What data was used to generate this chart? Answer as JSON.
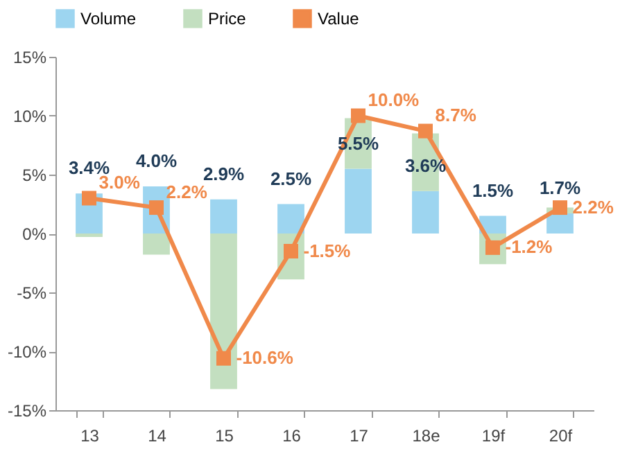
{
  "chart_data": {
    "type": "bar",
    "stacked": true,
    "categories": [
      "13",
      "14",
      "15",
      "16",
      "17",
      "18e",
      "19f",
      "20f"
    ],
    "series": [
      {
        "name": "Volume",
        "color": "#9dd5f0",
        "values": [
          3.4,
          4.0,
          2.9,
          2.5,
          5.5,
          3.6,
          1.5,
          1.7
        ],
        "value_labels": [
          "3.4%",
          "4.0%",
          "2.9%",
          "2.5%",
          "5.5%",
          "3.6%",
          "1.5%",
          "1.7%"
        ]
      },
      {
        "name": "Price",
        "color": "#c3dfc0",
        "values": [
          -0.3,
          -1.8,
          -13.2,
          -3.9,
          4.3,
          4.9,
          -2.6,
          0.5
        ]
      },
      {
        "name": "Value",
        "type": "line",
        "color": "#f0894a",
        "marker": "square",
        "values": [
          3.0,
          2.2,
          -10.6,
          -1.5,
          10.0,
          8.7,
          -1.2,
          2.2
        ],
        "value_labels": [
          "3.0%",
          "2.2%",
          "-10.6%",
          "-1.5%",
          "10.0%",
          "8.7%",
          "-1.2%",
          "2.2%"
        ]
      }
    ],
    "ylim": [
      -15,
      15
    ],
    "yticks": [
      {
        "value": -15,
        "label": "-15%"
      },
      {
        "value": -10,
        "label": "-10%"
      },
      {
        "value": -5,
        "label": "-5%"
      },
      {
        "value": 0,
        "label": "0%"
      },
      {
        "value": 5,
        "label": "5%"
      },
      {
        "value": 10,
        "label": "10%"
      },
      {
        "value": 15,
        "label": "15%"
      }
    ],
    "grid": false,
    "legend": "top"
  }
}
